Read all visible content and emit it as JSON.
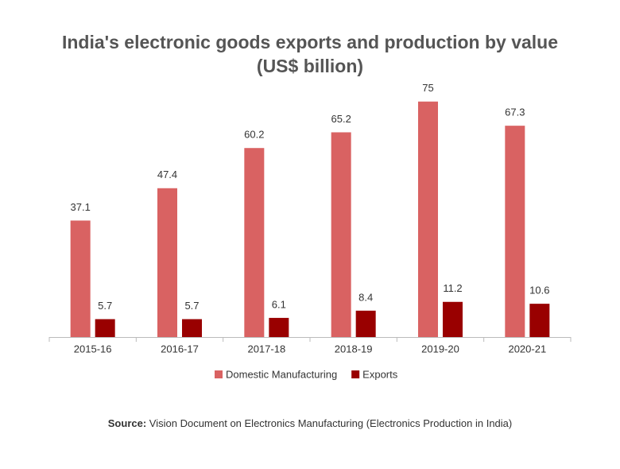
{
  "chart_data": {
    "type": "bar",
    "title": "India's electronic goods exports and production by value",
    "subtitle": "(US$ billion)",
    "categories": [
      "2015-16",
      "2016-17",
      "2017-18",
      "2018-19",
      "2019-20",
      "2020-21"
    ],
    "series": [
      {
        "name": "Domestic Manufacturing",
        "color": "#d96262",
        "values": [
          37.1,
          47.4,
          60.2,
          65.2,
          75,
          67.3
        ]
      },
      {
        "name": "Exports",
        "color": "#990000",
        "values": [
          5.7,
          5.7,
          6.1,
          8.4,
          11.2,
          10.6
        ]
      }
    ],
    "ylim": [
      0,
      80
    ],
    "source_label": "Source:",
    "source_text": "Vision Document on Electronics Manufacturing (Electronics Production in India)"
  }
}
